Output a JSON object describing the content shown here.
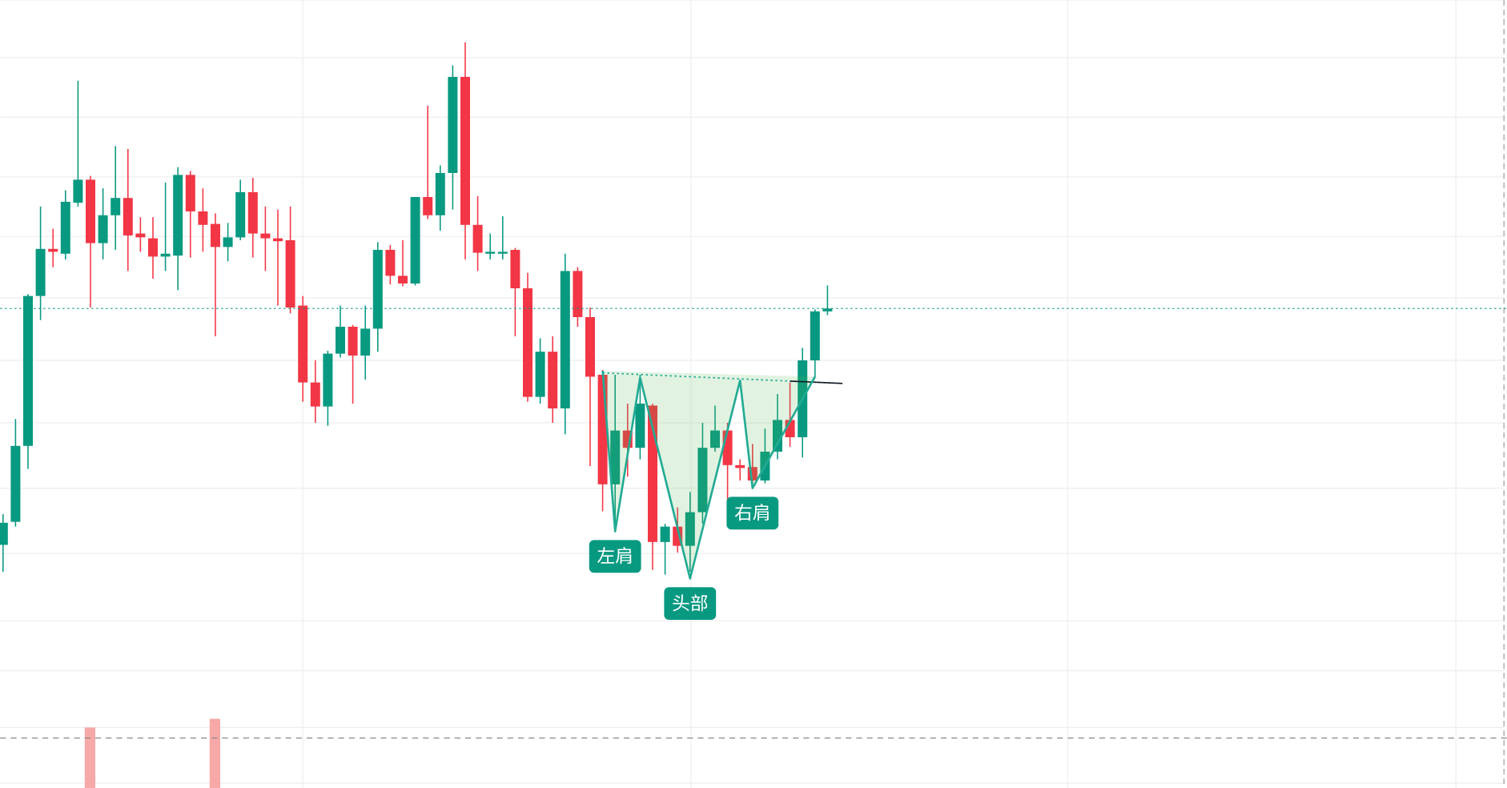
{
  "chart_data": {
    "type": "candlestick",
    "up_color": "#089981",
    "down_color": "#f23645",
    "ylim": [
      18,
      100
    ],
    "hline": 23.2,
    "open": [
      43.3,
      45.7,
      53.6,
      69.2,
      74.1,
      73.6,
      78.9,
      81.3,
      74.7,
      77.6,
      79.4,
      75.7,
      75.2,
      73.3,
      73.4,
      81.8,
      78.0,
      76.7,
      74.3,
      75.3,
      80.0,
      75.7,
      75.2,
      75.0,
      68.2,
      60.2,
      57.7,
      63.2,
      66.0,
      63.0,
      65.8,
      74.0,
      71.3,
      70.5,
      79.5,
      77.6,
      82.0,
      92.0,
      76.6,
      73.6,
      73.6,
      74.0,
      70.0,
      58.7,
      63.4,
      57.5,
      71.8,
      67.0,
      61.0,
      49.6,
      55.2,
      53.4,
      57.8,
      43.6,
      45.2,
      43.2,
      46.7,
      53.4,
      55.2,
      51.6,
      51.4,
      50.0,
      53.0,
      56.3,
      54.5,
      62.5,
      67.6
    ],
    "high": [
      46.5,
      56.4,
      69.4,
      78.5,
      76.2,
      80.2,
      91.6,
      81.7,
      80.4,
      84.8,
      84.5,
      77.4,
      77.4,
      81.0,
      82.6,
      82.2,
      80.4,
      77.8,
      76.8,
      81.3,
      81.5,
      78.5,
      78.2,
      78.5,
      69.2,
      62.5,
      63.5,
      68.2,
      66.2,
      68.2,
      74.8,
      74.5,
      75.0,
      79.5,
      89.0,
      82.8,
      93.2,
      95.6,
      79.6,
      75.7,
      77.5,
      74.2,
      71.6,
      64.8,
      65.0,
      73.6,
      72.2,
      68.0,
      61.5,
      61.0,
      58.0,
      61.0,
      58.0,
      45.5,
      47.2,
      48.8,
      56.0,
      57.8,
      56.0,
      52.2,
      53.8,
      55.4,
      59.0,
      60.2,
      63.8,
      67.8,
      70.3
    ],
    "low": [
      40.5,
      45.2,
      51.2,
      66.7,
      72.2,
      73.0,
      78.5,
      68.0,
      73.0,
      74.0,
      71.8,
      73.8,
      71.0,
      71.8,
      69.8,
      73.2,
      73.8,
      65.0,
      72.8,
      75.0,
      73.2,
      71.8,
      68.2,
      67.4,
      58.2,
      56.0,
      55.7,
      62.8,
      58.0,
      60.5,
      63.4,
      70.4,
      70.2,
      70.3,
      77.2,
      76.0,
      78.2,
      73.0,
      71.8,
      73.0,
      73.0,
      65.0,
      58.2,
      58.0,
      56.0,
      54.8,
      66.0,
      51.5,
      46.8,
      45.5,
      50.4,
      52.2,
      40.7,
      40.2,
      42.5,
      40.5,
      45.5,
      53.0,
      47.8,
      50.0,
      49.5,
      49.7,
      52.2,
      53.5,
      52.4,
      60.7,
      67.2
    ],
    "close": [
      45.6,
      53.6,
      69.2,
      74.1,
      73.8,
      79.0,
      81.3,
      74.7,
      77.6,
      79.4,
      75.5,
      75.3,
      73.3,
      73.6,
      81.8,
      78.0,
      76.6,
      74.3,
      75.3,
      80.0,
      75.7,
      75.2,
      74.9,
      68.0,
      60.2,
      57.7,
      63.2,
      66.0,
      63.0,
      65.8,
      74.0,
      71.3,
      70.5,
      79.5,
      77.6,
      82.0,
      92.0,
      76.6,
      73.7,
      73.8,
      73.8,
      70.0,
      58.7,
      63.4,
      57.5,
      71.8,
      67.0,
      60.8,
      49.6,
      55.2,
      53.4,
      58.0,
      43.6,
      45.2,
      43.2,
      46.7,
      53.4,
      55.2,
      51.6,
      51.3,
      50.0,
      53.0,
      56.3,
      54.5,
      62.5,
      67.6,
      67.9
    ],
    "pattern": {
      "color": "#22ab94",
      "points": [
        {
          "x": 48,
          "y": 61.4
        },
        {
          "x": 49,
          "y": 44.7,
          "label": "左肩"
        },
        {
          "x": 51,
          "y": 60.7
        },
        {
          "x": 55,
          "y": 39.8,
          "label": "头部"
        },
        {
          "x": 59,
          "y": 60.4
        },
        {
          "x": 60,
          "y": 49.2,
          "label": "右肩"
        },
        {
          "x": 65,
          "y": 60.8
        }
      ],
      "neckline": [
        [
          48,
          61.2
        ],
        [
          67.2,
          60.1
        ]
      ]
    }
  }
}
